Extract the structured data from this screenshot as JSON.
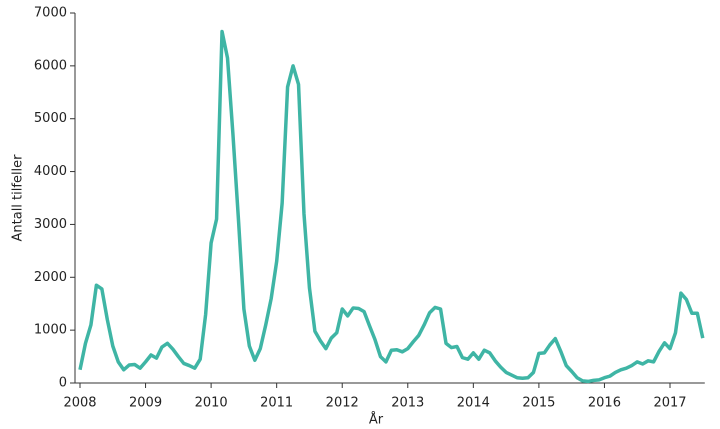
{
  "chart_data": {
    "type": "line",
    "xlabel": "År",
    "ylabel": "Antall tilfeller",
    "color": "#3fb5a5",
    "categories": [
      "2008",
      null,
      null,
      null,
      null,
      null,
      null,
      null,
      null,
      null,
      null,
      null,
      "2009",
      null,
      null,
      null,
      null,
      null,
      null,
      null,
      null,
      null,
      null,
      null,
      "2010",
      null,
      null,
      null,
      null,
      null,
      null,
      null,
      null,
      null,
      null,
      null,
      "2011",
      null,
      null,
      null,
      null,
      null,
      null,
      null,
      null,
      null,
      null,
      null,
      "2012",
      null,
      null,
      null,
      null,
      null,
      null,
      null,
      null,
      null,
      null,
      null,
      "2013",
      null,
      null,
      null,
      null,
      null,
      null,
      null,
      null,
      null,
      null,
      null,
      "2014",
      null,
      null,
      null,
      null,
      null,
      null,
      null,
      null,
      null,
      null,
      null,
      "2015",
      null,
      null,
      null,
      null,
      null,
      null,
      null,
      null,
      null,
      null,
      null,
      "2016",
      null,
      null,
      null,
      null,
      null,
      null,
      null,
      null,
      null,
      null,
      null,
      "2017",
      null,
      null,
      null,
      null,
      null,
      null
    ],
    "values": [
      250,
      750,
      1100,
      1850,
      1780,
      1200,
      700,
      400,
      250,
      340,
      350,
      280,
      400,
      530,
      470,
      680,
      750,
      640,
      500,
      370,
      330,
      280,
      450,
      1300,
      2650,
      3100,
      6650,
      6150,
      4700,
      3100,
      1400,
      700,
      430,
      650,
      1100,
      1600,
      2300,
      3400,
      5600,
      6000,
      5650,
      3200,
      1800,
      980,
      800,
      650,
      850,
      950,
      1400,
      1270,
      1420,
      1410,
      1350,
      1080,
      820,
      500,
      400,
      620,
      630,
      590,
      650,
      780,
      900,
      1100,
      1330,
      1430,
      1400,
      750,
      670,
      690,
      480,
      450,
      570,
      450,
      620,
      570,
      420,
      300,
      200,
      150,
      100,
      90,
      100,
      200,
      560,
      570,
      720,
      840,
      600,
      330,
      220,
      100,
      40,
      30,
      50,
      60,
      100,
      130,
      200,
      250,
      280,
      330,
      400,
      360,
      420,
      400,
      600,
      760,
      650,
      950,
      1700,
      1580,
      1320,
      1320,
      850
    ],
    "ylim": [
      0,
      7000
    ],
    "yticks": [
      0,
      1000,
      2000,
      3000,
      4000,
      5000,
      6000,
      7000
    ]
  }
}
